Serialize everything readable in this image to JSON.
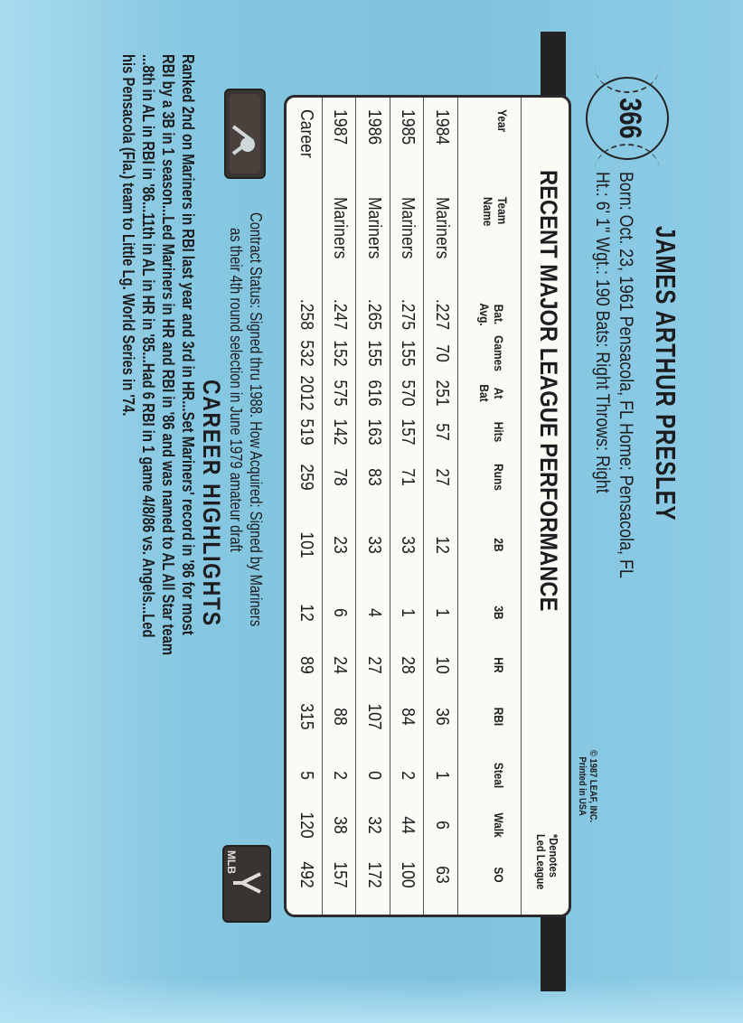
{
  "card_number": "366",
  "player": {
    "name": "JAMES ARTHUR PRESLEY",
    "born_line": "Born: Oct. 23, 1961  Pensacola, FL   Home: Pensacola, FL",
    "physical_line": "Ht.: 6' 1\"   Wgt.: 190   Bats: Right    Throws: Right"
  },
  "copyright": [
    "© 1987 LEAF, INC.",
    "Printed in USA"
  ],
  "stats": {
    "title": "RECENT MAJOR LEAGUE PERFORMANCE",
    "note": [
      "*Denotes",
      "Led League"
    ],
    "headers": [
      [
        "",
        "Year"
      ],
      [
        "Team",
        "Name"
      ],
      [
        "Bat.",
        "Avg."
      ],
      [
        "",
        "Games"
      ],
      [
        "At",
        "Bat"
      ],
      [
        "",
        "Hits"
      ],
      [
        "",
        "Runs"
      ],
      [
        "",
        "2B"
      ],
      [
        "",
        "3B"
      ],
      [
        "",
        "HR"
      ],
      [
        "",
        "RBI"
      ],
      [
        "",
        "Steal"
      ],
      [
        "",
        "Walk"
      ],
      [
        "",
        "SO"
      ]
    ],
    "rows": [
      [
        "1984",
        "Mariners",
        ".227",
        "70",
        "251",
        "57",
        "27",
        "12",
        "1",
        "10",
        "36",
        "1",
        "6",
        "63"
      ],
      [
        "1985",
        "Mariners",
        ".275",
        "155",
        "570",
        "157",
        "71",
        "33",
        "1",
        "28",
        "84",
        "2",
        "44",
        "100"
      ],
      [
        "1986",
        "Mariners",
        ".265",
        "155",
        "616",
        "163",
        "83",
        "33",
        "4",
        "27",
        "107",
        "0",
        "32",
        "172"
      ],
      [
        "1987",
        "Mariners",
        ".247",
        "152",
        "575",
        "142",
        "78",
        "23",
        "6",
        "24",
        "88",
        "2",
        "38",
        "157"
      ],
      [
        "Career",
        "",
        ".258",
        "532",
        "2012",
        "519",
        "259",
        "101",
        "12",
        "89",
        "315",
        "5",
        "120",
        "492"
      ]
    ]
  },
  "contract": [
    "Contract Status: Signed thru 1988. How Acquired: Signed by Mariners",
    "as their 4th round selection in June 1979 amateur draft"
  ],
  "highlights": {
    "title": "CAREER HIGHLIGHTS",
    "lines": [
      "Ranked 2nd on Mariners in RBI last year and 3rd in HR...Set Mariners' record in '86 for most",
      "RBI by a 3B in 1 season...Led Mariners in HR and RBI in '86 and was named to AL All Star team",
      "...8th in AL in RBI in '86...11th in AL in HR in '85...Had 6 RBI in 1 game 4/8/86 vs. Angels...Led",
      "his Pensacola (Fla.) team to Little Lg. World Series in '74."
    ]
  },
  "logos": {
    "left": "MLB Players Association logo",
    "right": "MLB logo",
    "right_text": "MLB"
  },
  "colors": {
    "card_blue": "#86c7e1",
    "ink": "#1d1d1f",
    "box": "#fbfbf6"
  }
}
